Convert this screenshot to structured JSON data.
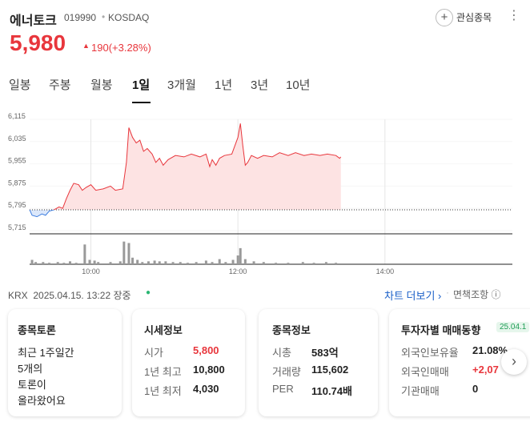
{
  "header": {
    "name": "에너토크",
    "code": "019990",
    "market": "KOSDAQ",
    "watch": "관심종목",
    "price": "5,980",
    "change": "190(+3.28%)"
  },
  "tabs": [
    "일봉",
    "주봉",
    "월봉",
    "1일",
    "3개월",
    "1년",
    "3년",
    "10년"
  ],
  "chart_data": {
    "type": "line",
    "x": [
      550,
      552,
      556,
      560,
      563,
      566,
      570,
      574,
      577,
      580,
      583,
      586,
      590,
      593,
      596,
      600,
      604,
      610,
      616,
      620,
      626,
      629,
      631,
      634,
      637,
      640,
      643,
      646,
      650,
      653,
      656,
      659,
      663,
      669,
      676,
      682,
      689,
      694,
      697,
      699,
      702,
      705,
      709,
      715,
      720,
      722,
      724,
      726,
      728,
      731,
      736,
      741,
      748,
      754,
      761,
      767,
      774,
      780,
      787,
      793,
      800,
      803,
      804
    ],
    "values": [
      5790,
      5770,
      5765,
      5775,
      5770,
      5785,
      5790,
      5800,
      5795,
      5830,
      5860,
      5885,
      5880,
      5860,
      5870,
      5880,
      5860,
      5865,
      5875,
      5860,
      5865,
      5960,
      6085,
      6050,
      6030,
      6040,
      6000,
      6010,
      5990,
      5960,
      5975,
      5950,
      5970,
      5985,
      5980,
      5990,
      5980,
      5990,
      5945,
      5970,
      5950,
      5975,
      5985,
      5990,
      6050,
      6100,
      6020,
      5950,
      5960,
      5985,
      5975,
      5985,
      5980,
      5995,
      5985,
      5995,
      5985,
      5990,
      5985,
      5990,
      5985,
      5975,
      5980
    ],
    "color": "#e8363c",
    "below_color": "#3f7fe0",
    "baseline": 5790,
    "xlim": [
      550,
      944
    ],
    "xticks": [
      {
        "value": 600,
        "label": "10:00"
      },
      {
        "value": 720,
        "label": "12:00"
      },
      {
        "value": 840,
        "label": "14:00"
      }
    ],
    "ylim": [
      5715,
      6115
    ],
    "yticks": [
      {
        "value": 6115,
        "label": "6,115"
      },
      {
        "value": 6035,
        "label": "6,035"
      },
      {
        "value": 5955,
        "label": "5,955"
      },
      {
        "value": 5875,
        "label": "5,875"
      },
      {
        "value": 5795,
        "label": "5,795"
      },
      {
        "value": 5715,
        "label": "5,715"
      }
    ],
    "volume": {
      "x": [
        552,
        555,
        561,
        566,
        573,
        578,
        583,
        588,
        595,
        599,
        603,
        606,
        616,
        624,
        627,
        631,
        634,
        638,
        642,
        647,
        652,
        656,
        661,
        667,
        673,
        679,
        686,
        694,
        699,
        705,
        710,
        716,
        720,
        722,
        726,
        733,
        741,
        751,
        761,
        773,
        782,
        792,
        800
      ],
      "values": [
        6,
        3,
        3,
        2,
        3,
        2,
        4,
        2,
        27,
        6,
        5,
        3,
        3,
        4,
        31,
        29,
        9,
        6,
        3,
        4,
        5,
        4,
        4,
        3,
        3,
        2,
        3,
        5,
        3,
        7,
        3,
        6,
        12,
        22,
        7,
        4,
        3,
        2,
        2,
        3,
        2,
        3,
        2
      ],
      "ylim": [
        0,
        35
      ],
      "color": "#999999"
    }
  },
  "status": {
    "market": "KRX",
    "time": "2025.04.15. 13:22",
    "state": "장중",
    "more_chart": "차트 더보기 ›",
    "disclaimer": "면책조항 ⓘ"
  },
  "cards": [
    {
      "title": "종목토론",
      "lines": [
        "최근 1주일간",
        "5개의",
        "토론이",
        "올라왔어요"
      ]
    },
    {
      "title": "시세정보",
      "rows": [
        [
          "시가",
          "5,800"
        ],
        [
          "1년 최고",
          "10,800"
        ],
        [
          "1년 최저",
          "4,030"
        ]
      ]
    },
    {
      "title": "종목정보",
      "rows": [
        [
          "시총",
          "583억"
        ],
        [
          "거래량",
          "115,602"
        ],
        [
          "PER",
          "110.74배"
        ]
      ]
    },
    {
      "title": "투자자별 매매동향",
      "badge": "25.04.1",
      "rows": [
        [
          "외국인보유율",
          "21.08%"
        ],
        [
          "외국인매매",
          "+2,07"
        ],
        [
          "기관매매",
          "0"
        ]
      ]
    }
  ]
}
